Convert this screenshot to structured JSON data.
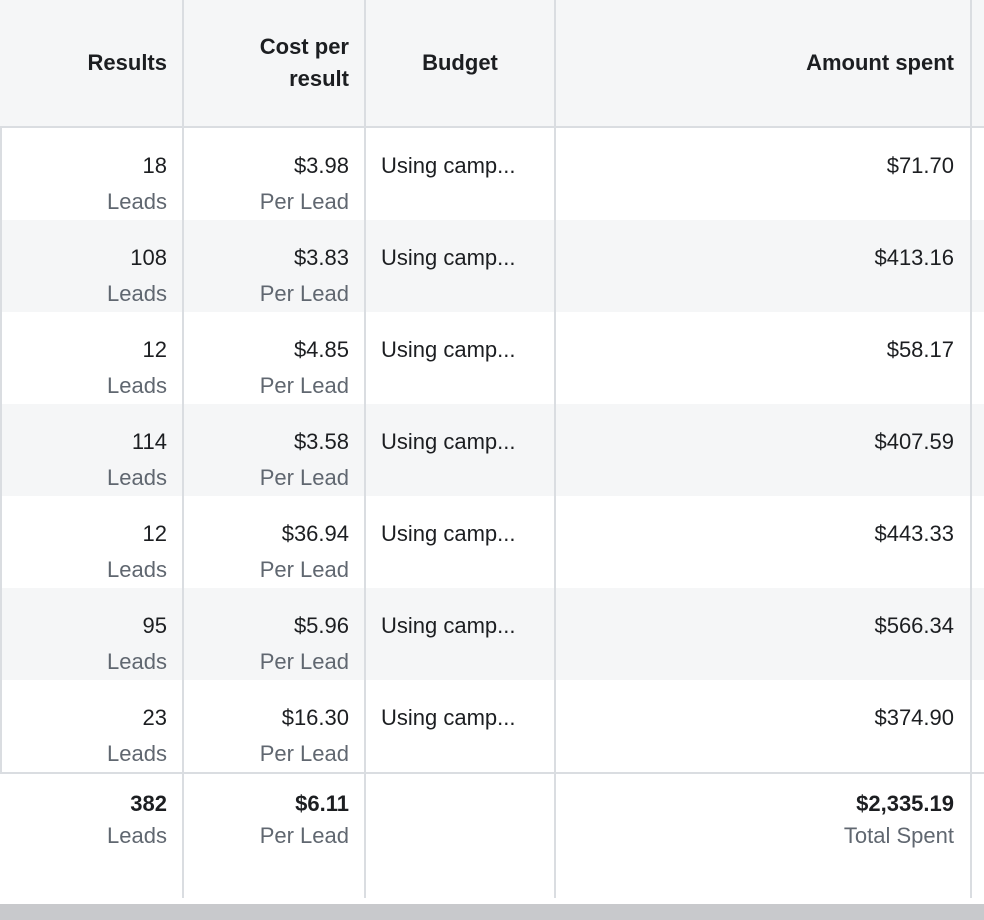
{
  "columns": {
    "results": "Results",
    "cost_per_result_line1": "Cost per",
    "cost_per_result_line2": "result",
    "budget": "Budget",
    "amount_spent": "Amount spent"
  },
  "rows": [
    {
      "results": "18",
      "results_unit": "Leads",
      "cost": "$3.98",
      "cost_unit": "Per Lead",
      "budget": "Using camp...",
      "spent": "$71.70"
    },
    {
      "results": "108",
      "results_unit": "Leads",
      "cost": "$3.83",
      "cost_unit": "Per Lead",
      "budget": "Using camp...",
      "spent": "$413.16"
    },
    {
      "results": "12",
      "results_unit": "Leads",
      "cost": "$4.85",
      "cost_unit": "Per Lead",
      "budget": "Using camp...",
      "spent": "$58.17"
    },
    {
      "results": "114",
      "results_unit": "Leads",
      "cost": "$3.58",
      "cost_unit": "Per Lead",
      "budget": "Using camp...",
      "spent": "$407.59"
    },
    {
      "results": "12",
      "results_unit": "Leads",
      "cost": "$36.94",
      "cost_unit": "Per Lead",
      "budget": "Using camp...",
      "spent": "$443.33"
    },
    {
      "results": "95",
      "results_unit": "Leads",
      "cost": "$5.96",
      "cost_unit": "Per Lead",
      "budget": "Using camp...",
      "spent": "$566.34"
    },
    {
      "results": "23",
      "results_unit": "Leads",
      "cost": "$16.30",
      "cost_unit": "Per Lead",
      "budget": "Using camp...",
      "spent": "$374.90"
    }
  ],
  "totals": {
    "results": "382",
    "results_unit": "Leads",
    "cost": "$6.11",
    "cost_unit": "Per Lead",
    "spent": "$2,335.19",
    "spent_unit": "Total Spent"
  }
}
